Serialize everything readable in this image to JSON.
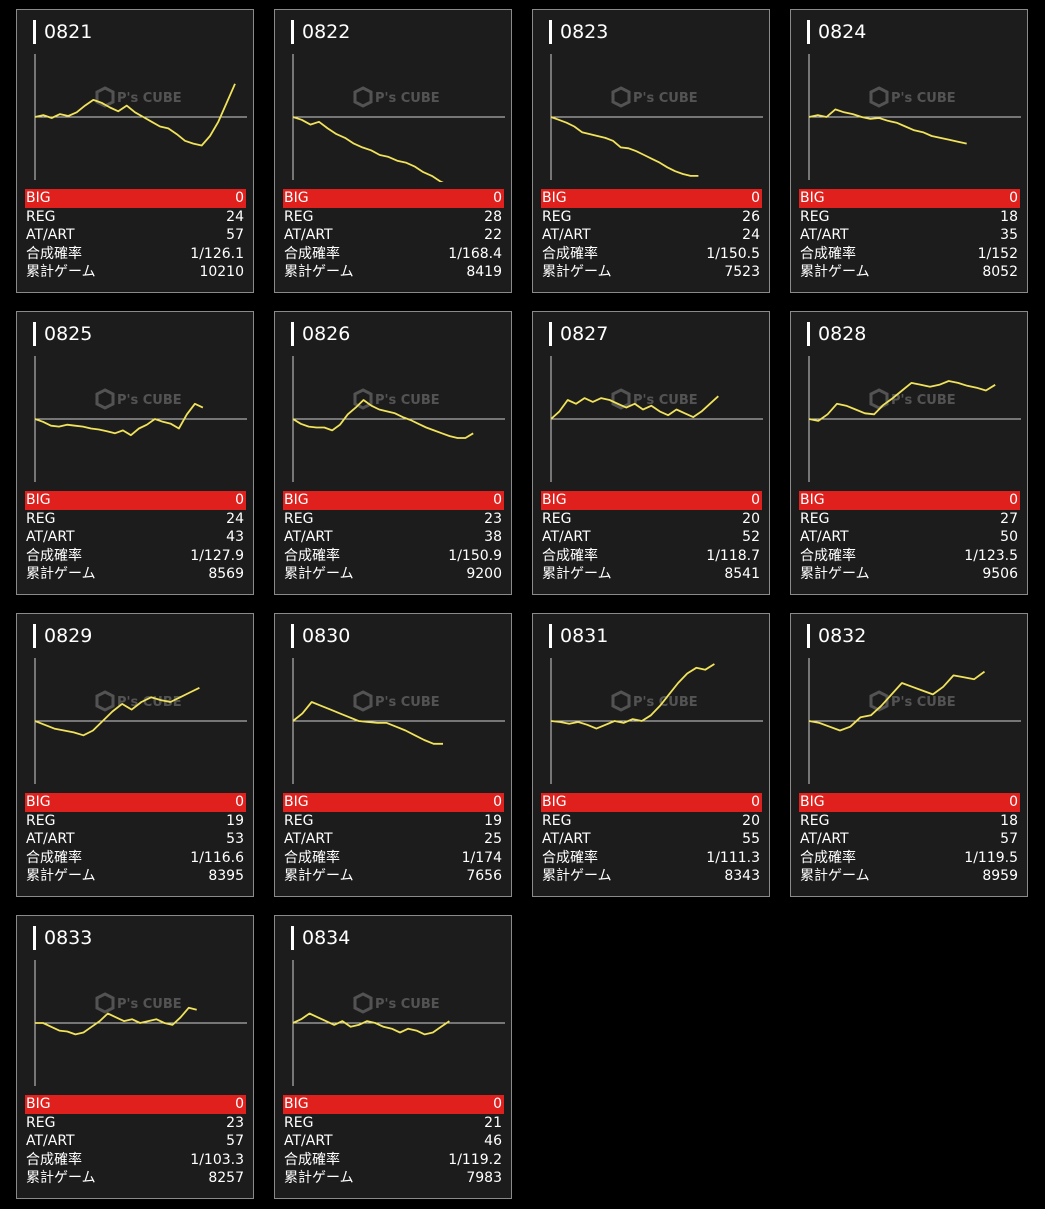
{
  "watermark": "P's CUBE",
  "labels": {
    "big": "BIG",
    "reg": "REG",
    "at": "AT/ART",
    "prob": "合成確率",
    "games": "累計ゲーム"
  },
  "colors": {
    "background": "#000000",
    "card": "#1c1c1c",
    "line": "#f0e25a",
    "big_row": "#e0201c"
  },
  "machines": [
    {
      "id": "0821",
      "big": "0",
      "reg": "24",
      "at": "57",
      "prob": "1/126.1",
      "games": "10210",
      "trend": [
        0,
        2,
        -1,
        3,
        1,
        5,
        12,
        18,
        15,
        10,
        6,
        12,
        5,
        0,
        -5,
        -10,
        -12,
        -18,
        -25,
        -28,
        -30,
        -20,
        -5,
        15,
        35
      ]
    },
    {
      "id": "0822",
      "big": "0",
      "reg": "28",
      "at": "22",
      "prob": "1/168.4",
      "games": "8419",
      "trend": [
        0,
        -3,
        -8,
        -5,
        -12,
        -18,
        -22,
        -28,
        -32,
        -35,
        -40,
        -42,
        -46,
        -48,
        -52,
        -58,
        -62,
        -68,
        -72,
        -78
      ]
    },
    {
      "id": "0823",
      "big": "0",
      "reg": "26",
      "at": "24",
      "prob": "1/150.5",
      "games": "7523",
      "trend": [
        0,
        -3,
        -6,
        -10,
        -16,
        -18,
        -20,
        -22,
        -25,
        -32,
        -33,
        -36,
        -40,
        -44,
        -48,
        -53,
        -57,
        -60,
        -62,
        -62
      ]
    },
    {
      "id": "0824",
      "big": "0",
      "reg": "18",
      "at": "35",
      "prob": "1/152",
      "games": "8052",
      "trend": [
        0,
        2,
        0,
        8,
        5,
        3,
        0,
        -2,
        -1,
        -4,
        -6,
        -10,
        -14,
        -16,
        -20,
        -22,
        -24,
        -26,
        -28
      ]
    },
    {
      "id": "0825",
      "big": "0",
      "reg": "24",
      "at": "43",
      "prob": "1/127.9",
      "games": "8569",
      "trend": [
        0,
        -3,
        -7,
        -8,
        -6,
        -7,
        -8,
        -10,
        -11,
        -13,
        -15,
        -12,
        -17,
        -10,
        -6,
        0,
        -3,
        -5,
        -10,
        5,
        16,
        12
      ]
    },
    {
      "id": "0826",
      "big": "0",
      "reg": "23",
      "at": "38",
      "prob": "1/150.9",
      "games": "9200",
      "trend": [
        0,
        -5,
        -8,
        -9,
        -9,
        -12,
        -6,
        5,
        12,
        20,
        14,
        10,
        8,
        6,
        2,
        -1,
        -5,
        -9,
        -12,
        -15,
        -18,
        -20,
        -20,
        -15
      ]
    },
    {
      "id": "0827",
      "big": "0",
      "reg": "20",
      "at": "52",
      "prob": "1/118.7",
      "games": "8541",
      "trend": [
        0,
        8,
        20,
        16,
        22,
        18,
        22,
        20,
        16,
        12,
        16,
        10,
        14,
        8,
        4,
        10,
        6,
        2,
        8,
        16,
        24
      ]
    },
    {
      "id": "0828",
      "big": "0",
      "reg": "27",
      "at": "50",
      "prob": "1/123.5",
      "games": "9506",
      "trend": [
        0,
        -2,
        5,
        16,
        14,
        10,
        6,
        5,
        15,
        22,
        30,
        38,
        36,
        34,
        36,
        40,
        38,
        35,
        33,
        30,
        36
      ]
    },
    {
      "id": "0829",
      "big": "0",
      "reg": "19",
      "at": "53",
      "prob": "1/116.6",
      "games": "8395",
      "trend": [
        0,
        -4,
        -8,
        -10,
        -12,
        -15,
        -10,
        0,
        10,
        18,
        12,
        20,
        25,
        22,
        20,
        25,
        30,
        35
      ]
    },
    {
      "id": "0830",
      "big": "0",
      "reg": "19",
      "at": "25",
      "prob": "1/174",
      "games": "7656",
      "trend": [
        0,
        8,
        20,
        16,
        12,
        8,
        4,
        0,
        -1,
        -2,
        -2,
        -6,
        -10,
        -15,
        -20,
        -24,
        -24
      ]
    },
    {
      "id": "0831",
      "big": "0",
      "reg": "20",
      "at": "55",
      "prob": "1/111.3",
      "games": "8343",
      "trend": [
        0,
        -1,
        -3,
        -1,
        -4,
        -8,
        -4,
        0,
        -2,
        2,
        0,
        6,
        16,
        28,
        40,
        50,
        56,
        54,
        60
      ]
    },
    {
      "id": "0832",
      "big": "0",
      "reg": "18",
      "at": "57",
      "prob": "1/119.5",
      "games": "8959",
      "trend": [
        0,
        -2,
        -6,
        -10,
        -6,
        4,
        6,
        16,
        28,
        40,
        36,
        32,
        28,
        36,
        48,
        46,
        44,
        52
      ]
    },
    {
      "id": "0833",
      "big": "0",
      "reg": "23",
      "at": "57",
      "prob": "1/103.3",
      "games": "8257",
      "trend": [
        0,
        0,
        -4,
        -8,
        -9,
        -12,
        -10,
        -4,
        2,
        10,
        6,
        2,
        4,
        0,
        2,
        4,
        0,
        -2,
        6,
        16,
        14
      ]
    },
    {
      "id": "0834",
      "big": "0",
      "reg": "21",
      "at": "46",
      "prob": "1/119.2",
      "games": "7983",
      "trend": [
        0,
        4,
        10,
        6,
        2,
        -2,
        2,
        -4,
        -2,
        2,
        0,
        -4,
        -6,
        -10,
        -6,
        -8,
        -12,
        -10,
        -4,
        2
      ]
    }
  ]
}
